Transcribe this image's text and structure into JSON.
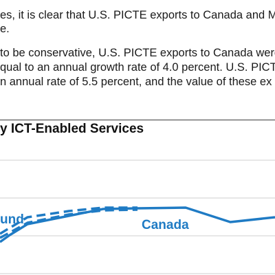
{
  "document": {
    "paragraph_lines": [
      "es, it is clear that U.S. PICTE exports to Canada and Me",
      "e.",
      "to be conservative, U.S. PICTE exports to Canada were",
      "qual to an annual growth rate of 4.0 percent. U.S. PICT",
      "n annual rate of 5.5 percent, and the value of these ex"
    ]
  },
  "chart": {
    "title": "y ICT-Enabled Services",
    "series_color": "#1f7bc4",
    "gridline_color": "#cfcfcf",
    "labels": {
      "bound": "und",
      "canada": "Canada"
    }
  },
  "chart_data": {
    "type": "line",
    "title": "y ICT-Enabled Services",
    "grid": true,
    "series": [
      {
        "name": "Canada",
        "style": "solid",
        "points": [
          [
            0,
            352
          ],
          [
            14,
            342
          ],
          [
            40,
            326
          ],
          [
            100,
            314
          ],
          [
            150,
            304
          ],
          [
            200,
            303
          ],
          [
            270,
            302
          ],
          [
            335,
            323
          ],
          [
            400,
            316
          ]
        ]
      },
      {
        "name": "und",
        "style": "dashed",
        "points": [
          [
            0,
            340
          ],
          [
            40,
            316
          ],
          [
            100,
            307
          ],
          [
            150,
            302
          ],
          [
            200,
            302
          ]
        ]
      },
      {
        "name": "und",
        "style": "dashed",
        "points": [
          [
            0,
            346
          ],
          [
            40,
            324
          ],
          [
            100,
            312
          ],
          [
            150,
            306
          ],
          [
            200,
            305
          ]
        ]
      }
    ]
  }
}
